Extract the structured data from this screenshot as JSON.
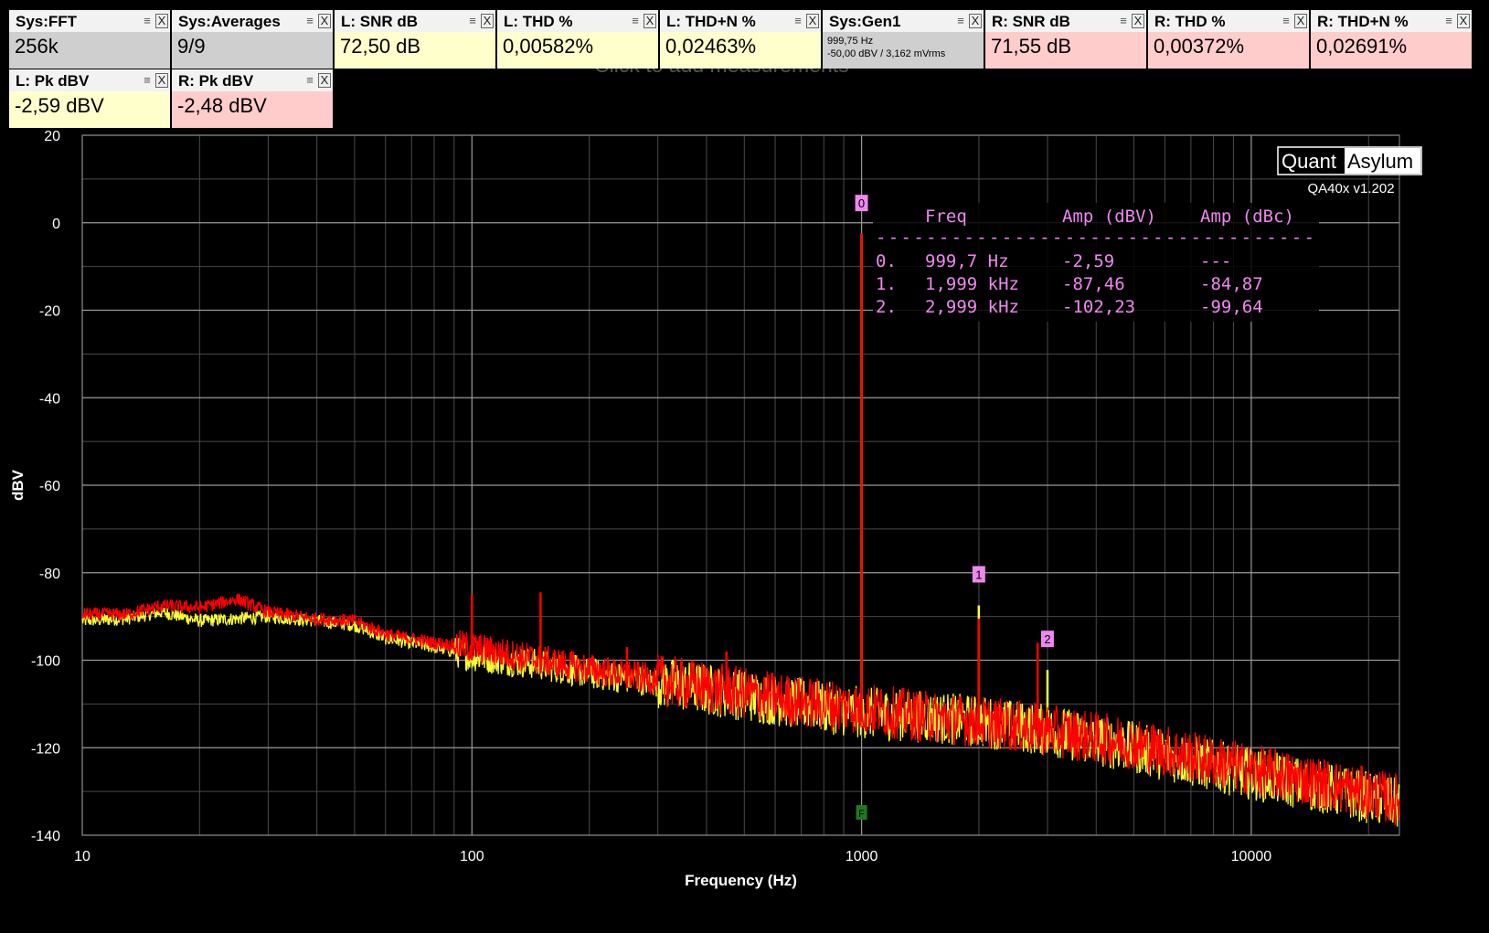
{
  "add_hint": "Click to add measurements",
  "tiles": [
    {
      "title": "Sys:FFT",
      "value": "256k",
      "theme": "gray"
    },
    {
      "title": "Sys:Averages",
      "value": "9/9",
      "theme": "gray"
    },
    {
      "title": "L: SNR dB",
      "value": "72,50 dB",
      "theme": "yellow"
    },
    {
      "title": "L: THD %",
      "value": "0,00582%",
      "theme": "yellow"
    },
    {
      "title": "L: THD+N %",
      "value": "0,02463%",
      "theme": "yellow"
    },
    {
      "title": "Sys:Gen1",
      "value": "999,75 Hz",
      "value2": "-50,00 dBV  / 3,162 mVrms",
      "theme": "gray"
    },
    {
      "title": "R: SNR dB",
      "value": "71,55 dB",
      "theme": "pink"
    },
    {
      "title": "R: THD %",
      "value": "0,00372%",
      "theme": "pink"
    },
    {
      "title": "R: THD+N %",
      "value": "0,02691%",
      "theme": "pink"
    },
    {
      "title": "L: Pk dBV",
      "value": "-2,59 dBV",
      "theme": "yellow"
    },
    {
      "title": "R: Pk dBV",
      "value": "-2,48 dBV",
      "theme": "pink"
    }
  ],
  "tile_icons": {
    "menu": "menu-icon",
    "close": "close-icon",
    "close_glyph": "X",
    "menu_glyph": "≡"
  },
  "brand": {
    "left": "Quant",
    "right": "Asylum",
    "version": "QA40x v1.202"
  },
  "colors": {
    "background": "#000000",
    "left_channel": "#ffff33",
    "right_channel": "#ff0000",
    "right_channel_dark": "#c80000",
    "marker": "#ee88ee",
    "fundamental_marker": "#1e7a1e",
    "table_text": "#ee88ee",
    "grid": "#8a8a8a"
  },
  "harmonics_table": {
    "headers": [
      "Freq",
      "Amp (dBV)",
      "Amp (dBc)"
    ],
    "separator": "-----------------------------------",
    "rows": [
      {
        "index": "0.",
        "freq": "999,7 Hz",
        "dbv": "-2,59",
        "dbc": "---"
      },
      {
        "index": "1.",
        "freq": "1,999 kHz",
        "dbv": "-87,46",
        "dbc": "-84,87"
      },
      {
        "index": "2.",
        "freq": "2,999 kHz",
        "dbv": "-102,23",
        "dbc": "-99,64"
      }
    ]
  },
  "chart_data": {
    "type": "line",
    "xlabel": "Frequency (Hz)",
    "ylabel": "dBV",
    "xscale": "log",
    "xlim": [
      10,
      24000
    ],
    "ylim": [
      -140,
      20
    ],
    "x_ticks": [
      10,
      100,
      1000,
      10000
    ],
    "x_tick_labels": [
      "10",
      "100",
      "1000",
      "10000"
    ],
    "y_ticks": [
      20,
      0,
      -20,
      -40,
      -60,
      -80,
      -100,
      -120,
      -140
    ],
    "y_tick_labels": [
      "20",
      "0",
      "-20",
      "-40",
      "-60",
      "-80",
      "-100",
      "-120",
      "-140"
    ],
    "grid": true,
    "series": [
      {
        "channel": "left",
        "color": "#ffff33",
        "x": [
          10,
          13,
          16,
          20,
          25,
          30,
          40,
          50,
          60,
          80,
          100,
          150,
          200,
          300,
          500,
          700,
          1000,
          1500,
          2000,
          3000,
          5000,
          7000,
          10000,
          15000,
          24000
        ],
        "y": [
          -91,
          -90.5,
          -89,
          -91,
          -90.5,
          -90,
          -91,
          -92,
          -95,
          -97,
          -99,
          -101,
          -103,
          -105,
          -108,
          -110,
          -112,
          -113,
          -114,
          -116,
          -120,
          -123,
          -126,
          -129,
          -133
        ],
        "peaks": [
          {
            "x": 999.7,
            "y": -2.59
          },
          {
            "x": 1999,
            "y": -87.46
          },
          {
            "x": 2999,
            "y": -102.23
          }
        ]
      },
      {
        "channel": "right",
        "color": "#ff0000",
        "x": [
          10,
          13,
          16,
          20,
          25,
          30,
          40,
          50,
          60,
          80,
          100,
          150,
          200,
          300,
          500,
          700,
          1000,
          1500,
          2000,
          3000,
          5000,
          7000,
          10000,
          15000,
          24000
        ],
        "y": [
          -89.5,
          -89.5,
          -87.5,
          -88,
          -86,
          -89,
          -90.5,
          -91,
          -94,
          -96,
          -97,
          -100,
          -102,
          -104.5,
          -107.5,
          -109.5,
          -111,
          -113,
          -114,
          -116,
          -119,
          -122,
          -125,
          -128,
          -132
        ],
        "peaks": [
          {
            "x": 999.7,
            "y": -2.48
          },
          {
            "x": 1999,
            "y": -90.5
          },
          {
            "x": 2830,
            "y": -96
          },
          {
            "x": 100,
            "y": -85
          },
          {
            "x": 150,
            "y": -84.5
          },
          {
            "x": 250,
            "y": -97
          },
          {
            "x": 450,
            "y": -98
          }
        ]
      }
    ],
    "markers": [
      {
        "label": "0",
        "x": 999.7,
        "y": -2.59
      },
      {
        "label": "1",
        "x": 1999,
        "y": -87.46
      },
      {
        "label": "2",
        "x": 2999,
        "y": -102.23
      }
    ],
    "fundamental_marker": {
      "label": "F",
      "x": 999.7,
      "y": -135
    }
  }
}
